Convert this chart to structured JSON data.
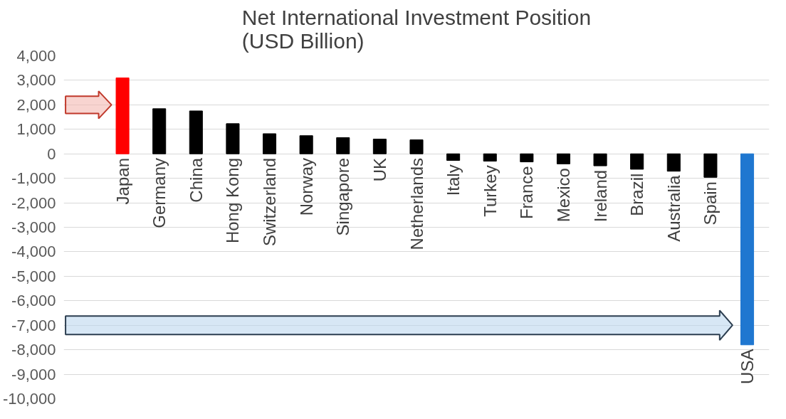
{
  "chart_data": {
    "type": "bar",
    "title": "Net International Investment Position\n(USD Billion)",
    "categories": [
      "Japan",
      "Germany",
      "China",
      "Hong Kong",
      "Switzerland",
      "Norway",
      "Singapore",
      "UK",
      "Netherlands",
      "Italy",
      "Turkey",
      "France",
      "Mexico",
      "Ireland",
      "Brazil",
      "Australia",
      "Spain",
      "USA"
    ],
    "values": [
      3100,
      1840,
      1750,
      1230,
      820,
      740,
      660,
      600,
      570,
      -270,
      -300,
      -330,
      -410,
      -490,
      -630,
      -710,
      -960,
      -7800
    ],
    "colors": [
      "#ff0000",
      "#000000",
      "#000000",
      "#000000",
      "#000000",
      "#000000",
      "#000000",
      "#000000",
      "#000000",
      "#000000",
      "#000000",
      "#000000",
      "#000000",
      "#000000",
      "#000000",
      "#000000",
      "#000000",
      "#1f77d0"
    ],
    "ylim": [
      -10000,
      4000
    ],
    "yticks": [
      {
        "value": 4000,
        "label": "4,000"
      },
      {
        "value": 3000,
        "label": "3,000"
      },
      {
        "value": 2000,
        "label": "2,000"
      },
      {
        "value": 1000,
        "label": "1,000"
      },
      0,
      {
        "value": -1000,
        "label": "-1,000"
      },
      {
        "value": -2000,
        "label": "-2,000"
      },
      {
        "value": -3000,
        "label": "-3,000"
      },
      {
        "value": -4000,
        "label": "-4,000"
      },
      {
        "value": -5000,
        "label": "-5,000"
      },
      {
        "value": -6000,
        "label": "-6,000"
      },
      {
        "value": -7000,
        "label": "-7,000"
      },
      {
        "value": -8000,
        "label": "-8,000"
      },
      {
        "value": -9000,
        "label": "-9,000"
      },
      {
        "value": -10000,
        "label": "-10,000"
      }
    ],
    "grid": "y"
  }
}
